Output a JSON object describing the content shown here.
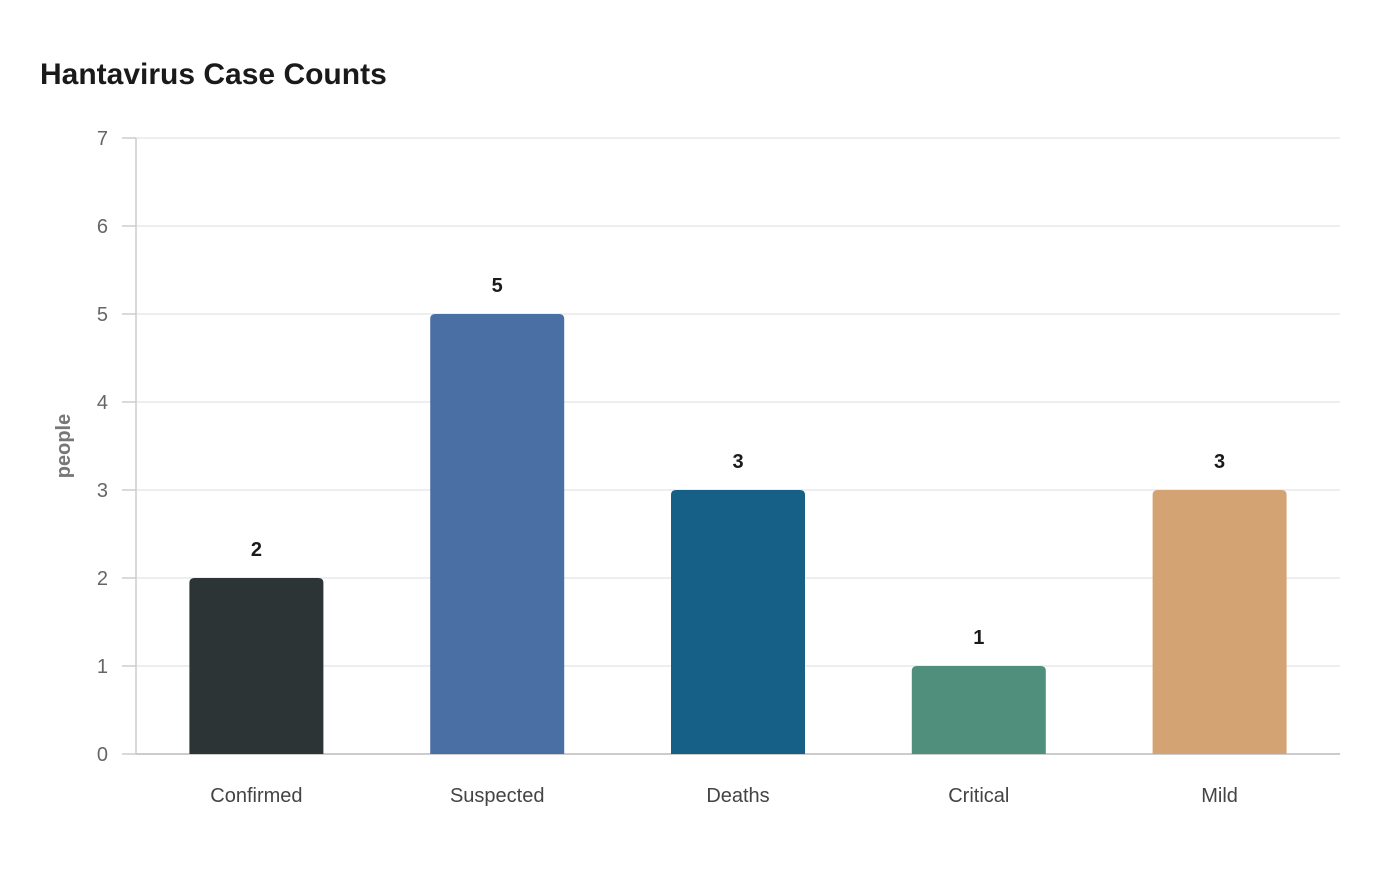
{
  "chart_data": {
    "type": "bar",
    "title": "Hantavirus Case Counts",
    "xlabel": "",
    "ylabel": "people",
    "categories": [
      "Confirmed",
      "Suspected",
      "Deaths",
      "Critical",
      "Mild"
    ],
    "values": [
      2,
      5,
      3,
      1,
      3
    ],
    "colors": [
      "#2d3436",
      "#4a6fa5",
      "#166088",
      "#4f8f7b",
      "#d4a373"
    ],
    "ylim": [
      0,
      7
    ],
    "yticks": [
      0,
      1,
      2,
      3,
      4,
      5,
      6,
      7
    ],
    "grid": true,
    "legend": "none"
  }
}
